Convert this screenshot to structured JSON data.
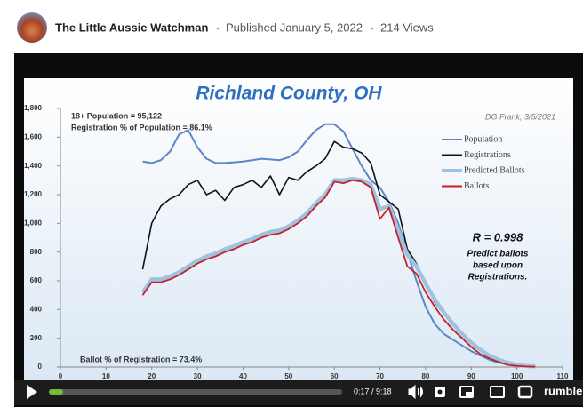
{
  "header": {
    "channel": "The Little Aussie Watchman",
    "published": "Published January 5, 2022",
    "views": "214 Views"
  },
  "chart_data": {
    "type": "line",
    "title": "Richland County, OH",
    "annotations": [
      "18+ Population = 95,122",
      "Registration % of Population = 86.1%",
      "DG Frank, 3/5/2021",
      "R = 0.998",
      "Predict ballots",
      "based upon",
      "Registrations.",
      "Ballot % of Registration = 73.4%"
    ],
    "x": [
      18,
      20,
      22,
      24,
      26,
      28,
      30,
      32,
      34,
      36,
      38,
      40,
      42,
      44,
      46,
      48,
      50,
      52,
      54,
      56,
      58,
      60,
      62,
      64,
      66,
      68,
      70,
      72,
      74,
      76,
      78,
      80,
      82,
      84,
      86,
      88,
      90,
      92,
      94,
      96,
      98,
      100,
      102,
      104
    ],
    "series": [
      {
        "name": "Population",
        "color": "#5b87c9",
        "values": [
          1430,
          1420,
          1440,
          1500,
          1620,
          1650,
          1530,
          1450,
          1420,
          1420,
          1425,
          1430,
          1440,
          1450,
          1445,
          1440,
          1460,
          1500,
          1580,
          1650,
          1690,
          1690,
          1640,
          1520,
          1400,
          1300,
          1250,
          1150,
          1000,
          800,
          600,
          420,
          300,
          230,
          190,
          150,
          110,
          80,
          50,
          30,
          20,
          10,
          5,
          3
        ]
      },
      {
        "name": "Registrations",
        "color": "#111111",
        "values": [
          680,
          1000,
          1120,
          1170,
          1200,
          1270,
          1300,
          1200,
          1230,
          1160,
          1250,
          1270,
          1300,
          1250,
          1330,
          1200,
          1320,
          1300,
          1360,
          1400,
          1450,
          1570,
          1530,
          1520,
          1490,
          1420,
          1200,
          1150,
          1100,
          820,
          720,
          580,
          450,
          370,
          300,
          240,
          170,
          120,
          80,
          50,
          30,
          15,
          8,
          4
        ]
      },
      {
        "name": "Predicted Ballots",
        "color": "#9ec3df",
        "values": [
          520,
          610,
          610,
          630,
          660,
          700,
          740,
          770,
          790,
          820,
          840,
          870,
          890,
          920,
          940,
          950,
          980,
          1020,
          1070,
          1140,
          1200,
          1300,
          1300,
          1310,
          1300,
          1270,
          1100,
          1120,
          950,
          780,
          700,
          580,
          470,
          380,
          300,
          230,
          170,
          120,
          80,
          50,
          30,
          15,
          8,
          4
        ]
      },
      {
        "name": "Ballots",
        "color": "#c8202a",
        "values": [
          500,
          590,
          590,
          610,
          640,
          680,
          720,
          750,
          770,
          800,
          820,
          850,
          870,
          900,
          920,
          930,
          960,
          1000,
          1050,
          1120,
          1180,
          1290,
          1280,
          1300,
          1290,
          1250,
          1030,
          1110,
          900,
          700,
          650,
          520,
          420,
          330,
          260,
          200,
          140,
          90,
          60,
          35,
          15,
          8,
          4,
          2
        ]
      }
    ],
    "xlim": [
      0,
      110
    ],
    "xticks": [
      0,
      10,
      20,
      30,
      40,
      50,
      60,
      70,
      80,
      90,
      100,
      110
    ],
    "ylim": [
      0,
      1800
    ],
    "yticks": [
      0,
      200,
      400,
      600,
      800,
      {
        "value": 1000,
        "label": "1,000"
      },
      {
        "value": 1200,
        "label": "1,200"
      },
      {
        "value": 1400,
        "label": "1,400"
      },
      {
        "value": 1600,
        "label": "1,600"
      },
      {
        "value": 1800,
        "label": "1,800"
      }
    ]
  },
  "player": {
    "time": "0:17 / 9:18",
    "brand": "rumble"
  }
}
